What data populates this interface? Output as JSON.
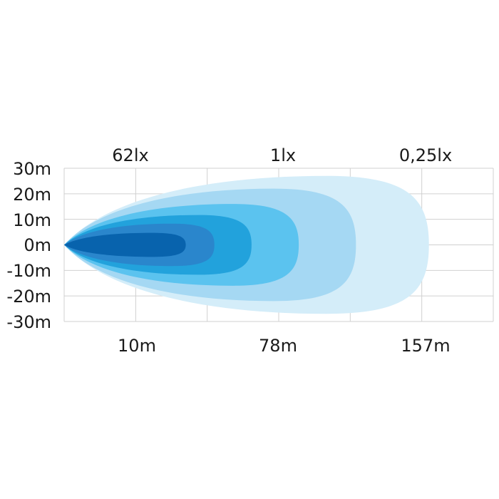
{
  "chart_data": {
    "type": "area",
    "top_labels": [
      "62lx",
      "1lx",
      "0,25lx"
    ],
    "x_tick_labels": [
      "10m",
      "78m",
      "157m"
    ],
    "y_tick_labels": [
      "30m",
      "20m",
      "10m",
      "0m",
      "-10m",
      "-20m",
      "-30m"
    ],
    "y_values": [
      30,
      20,
      10,
      0,
      -10,
      -20,
      -30
    ],
    "ylim": [
      -30,
      30
    ],
    "x_grid_columns": 6,
    "grid": true,
    "layers": [
      {
        "color": "#d4edf9",
        "half_width_m": 27,
        "reach_grid": 5.1
      },
      {
        "color": "#a5d8f3",
        "half_width_m": 22,
        "reach_grid": 4.08
      },
      {
        "color": "#5bc3ef",
        "half_width_m": 16,
        "reach_grid": 3.28
      },
      {
        "color": "#22a2dc",
        "half_width_m": 11.7,
        "reach_grid": 2.62
      },
      {
        "color": "#2a86cc",
        "half_width_m": 8.3,
        "reach_grid": 2.1
      },
      {
        "color": "#0863ad",
        "half_width_m": 4.7,
        "reach_grid": 1.7
      }
    ],
    "grid_color": "#d0d0d0"
  }
}
